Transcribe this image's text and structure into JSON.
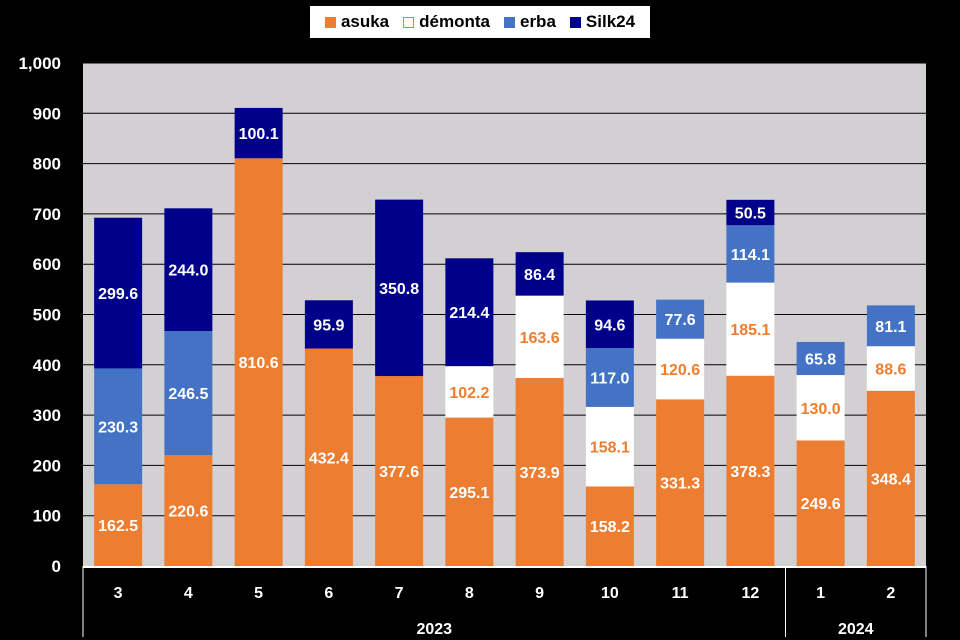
{
  "chart_data": {
    "type": "bar",
    "stacked": true,
    "categories": [
      "3",
      "4",
      "5",
      "6",
      "7",
      "8",
      "9",
      "10",
      "11",
      "12",
      "1",
      "2"
    ],
    "year_groups": [
      {
        "label": "2023",
        "count": 10
      },
      {
        "label": "2024",
        "count": 2
      }
    ],
    "series": [
      {
        "name": "asuka",
        "color": "#ED7D31",
        "label_color": "#FFFFFF",
        "values": [
          162.5,
          220.6,
          810.6,
          432.4,
          377.6,
          295.1,
          373.9,
          158.2,
          331.3,
          378.3,
          249.6,
          348.4
        ]
      },
      {
        "name": "démonta",
        "color": "#FFFFFF",
        "label_color": "#ED7D31",
        "values": [
          null,
          null,
          null,
          null,
          null,
          102.2,
          163.6,
          158.1,
          120.6,
          185.1,
          130.0,
          88.6
        ]
      },
      {
        "name": "erba",
        "color": "#4472C4",
        "label_color": "#FFFFFF",
        "values": [
          230.3,
          246.5,
          null,
          null,
          null,
          null,
          null,
          117.0,
          77.6,
          114.1,
          65.8,
          81.1
        ]
      },
      {
        "name": "Silk24",
        "color": "#00008B",
        "label_color": "#FFFFFF",
        "values": [
          299.6,
          244.0,
          100.1,
          95.9,
          350.8,
          214.4,
          86.4,
          94.6,
          null,
          50.5,
          null,
          null
        ]
      }
    ],
    "ylim": [
      0,
      1000
    ],
    "yticks": [
      "0",
      "100",
      "200",
      "300",
      "400",
      "500",
      "600",
      "700",
      "800",
      "900",
      "1,000"
    ],
    "grid": true,
    "legend_position": "top",
    "plot_background": "#D3D0D3",
    "title": "",
    "xlabel": "",
    "ylabel": ""
  }
}
